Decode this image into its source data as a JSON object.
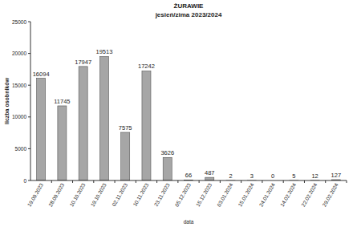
{
  "chart_data": {
    "type": "bar",
    "title": "ŻURAWIE",
    "subtitle": "jesień/zima 2023/2024",
    "x_label": "data",
    "y_label": "liczba osobników",
    "categories": [
      "19.09.2023",
      "28.09.2023",
      "10.10.2023",
      "19.10.2023",
      "02.11.2023",
      "10.11.2023",
      "23.11.2023",
      "05.12.2023",
      "15.12.2023",
      "03.01.2024",
      "15.01.2024",
      "24.01.2024",
      "14.02.2024",
      "22.02.2024",
      "29.02.2024"
    ],
    "values": [
      16094,
      11745,
      17947,
      19513,
      7575,
      17242,
      3626,
      66,
      487,
      2,
      3,
      0,
      5,
      12,
      127
    ],
    "color": "#a6a6a6",
    "ylim": [
      0,
      25000
    ],
    "yticks": [
      0,
      5000,
      10000,
      15000,
      20000,
      25000
    ],
    "grid": false,
    "data_labels": true
  }
}
